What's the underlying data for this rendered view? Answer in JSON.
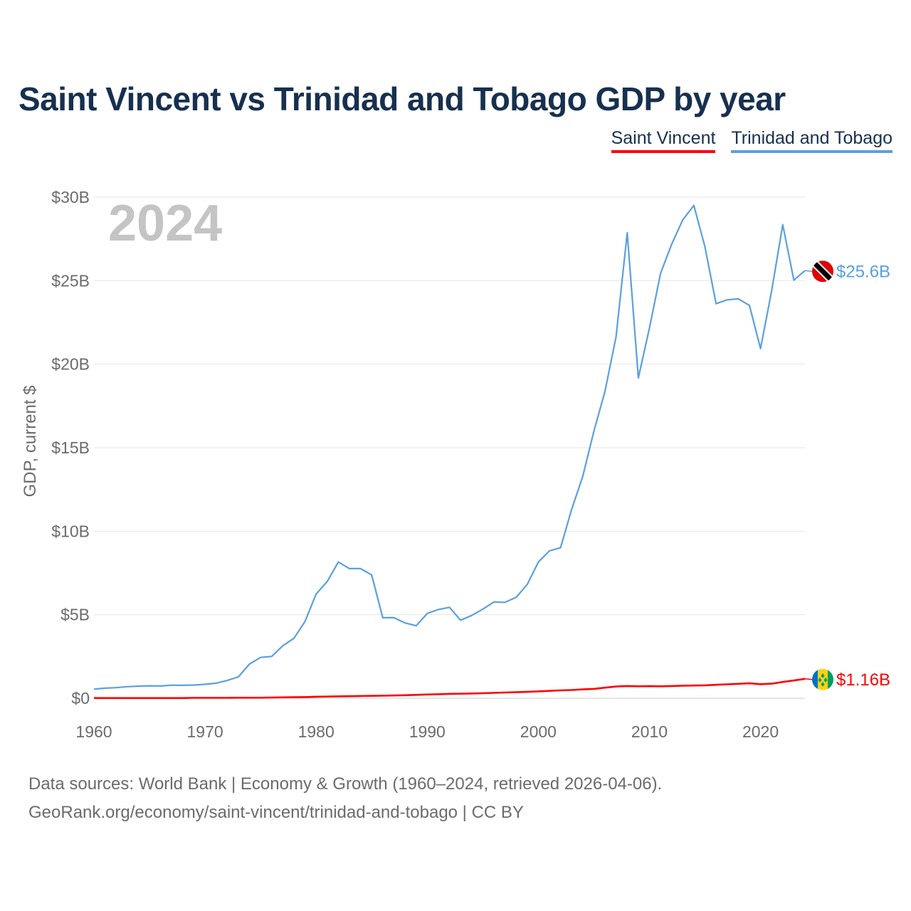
{
  "title": "Saint Vincent vs Trinidad and Tobago GDP by year",
  "legend": {
    "saint_vincent": "Saint Vincent",
    "trinidad": "Trinidad and Tobago"
  },
  "colors": {
    "saint_vincent": "#ff0000",
    "trinidad": "#5aa0e0",
    "title": "#17304f"
  },
  "year_watermark": "2024",
  "end_labels": {
    "trinidad": "$25.6B",
    "saint_vincent": "$1.16B"
  },
  "footer": {
    "line1": "Data sources: World Bank | Economy & Growth (1960–2024, retrieved 2026-04-06).",
    "line2": "GeoRank.org/economy/saint-vincent/trinidad-and-tobago | CC BY"
  },
  "chart_data": {
    "type": "line",
    "title": "Saint Vincent vs Trinidad and Tobago GDP by year",
    "xlabel": "",
    "ylabel": "GDP, current $",
    "xlim": [
      1960,
      2024
    ],
    "ylim": [
      0,
      30
    ],
    "x_ticks": [
      1960,
      1970,
      1980,
      1990,
      2000,
      2010,
      2020
    ],
    "x_tick_labels": [
      "1960",
      "1970",
      "1980",
      "1990",
      "2000",
      "2010",
      "2020"
    ],
    "y_ticks": [
      0,
      5,
      10,
      15,
      20,
      25,
      30
    ],
    "y_tick_labels": [
      "$0",
      "$5B",
      "$10B",
      "$15B",
      "$20B",
      "$25B",
      "$30B"
    ],
    "grid": true,
    "legend_position": "top-right",
    "x": [
      1960,
      1961,
      1962,
      1963,
      1964,
      1965,
      1966,
      1967,
      1968,
      1969,
      1970,
      1971,
      1972,
      1973,
      1974,
      1975,
      1976,
      1977,
      1978,
      1979,
      1980,
      1981,
      1982,
      1983,
      1984,
      1985,
      1986,
      1987,
      1988,
      1989,
      1990,
      1991,
      1992,
      1993,
      1994,
      1995,
      1996,
      1997,
      1998,
      1999,
      2000,
      2001,
      2002,
      2003,
      2004,
      2005,
      2006,
      2007,
      2008,
      2009,
      2010,
      2011,
      2012,
      2013,
      2014,
      2015,
      2016,
      2017,
      2018,
      2019,
      2020,
      2021,
      2022,
      2023,
      2024
    ],
    "series": [
      {
        "name": "Trinidad and Tobago",
        "values": [
          0.54,
          0.6,
          0.63,
          0.69,
          0.72,
          0.74,
          0.73,
          0.78,
          0.77,
          0.79,
          0.83,
          0.9,
          1.06,
          1.28,
          2.04,
          2.44,
          2.5,
          3.14,
          3.59,
          4.6,
          6.24,
          6.99,
          8.15,
          7.76,
          7.76,
          7.38,
          4.82,
          4.82,
          4.51,
          4.34,
          5.07,
          5.31,
          5.44,
          4.67,
          4.95,
          5.33,
          5.76,
          5.74,
          6.04,
          6.81,
          8.15,
          8.82,
          9.01,
          11.31,
          13.28,
          15.98,
          18.37,
          21.64,
          27.87,
          19.18,
          22.16,
          25.43,
          27.18,
          28.64,
          29.5,
          27.02,
          23.62,
          23.85,
          23.91,
          23.52,
          20.93,
          24.39,
          28.35,
          25.03,
          25.6
        ]
      },
      {
        "name": "Saint Vincent",
        "values": [
          0.01,
          0.01,
          0.01,
          0.01,
          0.01,
          0.01,
          0.01,
          0.01,
          0.01,
          0.02,
          0.02,
          0.02,
          0.02,
          0.03,
          0.03,
          0.03,
          0.04,
          0.05,
          0.06,
          0.07,
          0.09,
          0.1,
          0.11,
          0.12,
          0.13,
          0.14,
          0.15,
          0.16,
          0.18,
          0.2,
          0.22,
          0.24,
          0.26,
          0.27,
          0.28,
          0.3,
          0.32,
          0.34,
          0.36,
          0.38,
          0.41,
          0.44,
          0.47,
          0.49,
          0.53,
          0.56,
          0.63,
          0.7,
          0.73,
          0.71,
          0.72,
          0.71,
          0.73,
          0.75,
          0.76,
          0.77,
          0.8,
          0.83,
          0.86,
          0.89,
          0.84,
          0.87,
          0.97,
          1.06,
          1.16
        ]
      }
    ]
  }
}
